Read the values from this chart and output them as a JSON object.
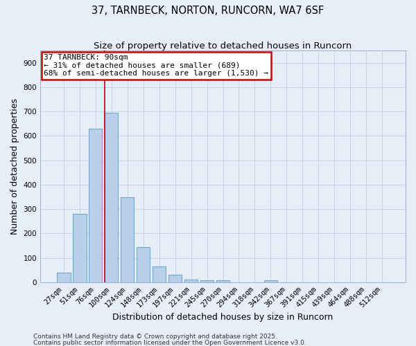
{
  "title1": "37, TARNBECK, NORTON, RUNCORN, WA7 6SF",
  "title2": "Size of property relative to detached houses in Runcorn",
  "xlabel": "Distribution of detached houses by size in Runcorn",
  "ylabel": "Number of detached properties",
  "categories": [
    "27sqm",
    "51sqm",
    "76sqm",
    "100sqm",
    "124sqm",
    "148sqm",
    "173sqm",
    "197sqm",
    "221sqm",
    "245sqm",
    "270sqm",
    "294sqm",
    "318sqm",
    "342sqm",
    "367sqm",
    "391sqm",
    "415sqm",
    "439sqm",
    "464sqm",
    "488sqm",
    "512sqm"
  ],
  "values": [
    40,
    280,
    630,
    695,
    350,
    145,
    65,
    30,
    12,
    8,
    8,
    0,
    0,
    8,
    0,
    0,
    0,
    0,
    0,
    0,
    0
  ],
  "bar_color": "#b8d0ea",
  "bar_edge_color": "#6aaad4",
  "bar_width": 0.85,
  "red_line_x": 2.58,
  "annotation_line1": "37 TARNBECK: 90sqm",
  "annotation_line2": "← 31% of detached houses are smaller (689)",
  "annotation_line3": "68% of semi-detached houses are larger (1,530) →",
  "annotation_box_color": "#ffffff",
  "annotation_border_color": "#cc0000",
  "ylim": [
    0,
    950
  ],
  "yticks": [
    0,
    100,
    200,
    300,
    400,
    500,
    600,
    700,
    800,
    900
  ],
  "grid_color": "#c8d4e8",
  "bg_color": "#e8eef8",
  "footer1": "Contains HM Land Registry data © Crown copyright and database right 2025.",
  "footer2": "Contains public sector information licensed under the Open Government Licence v3.0.",
  "title1_fontsize": 10.5,
  "title2_fontsize": 9.5,
  "axis_label_fontsize": 9,
  "tick_fontsize": 7.5,
  "footer_fontsize": 6.5,
  "annot_fontsize": 8
}
